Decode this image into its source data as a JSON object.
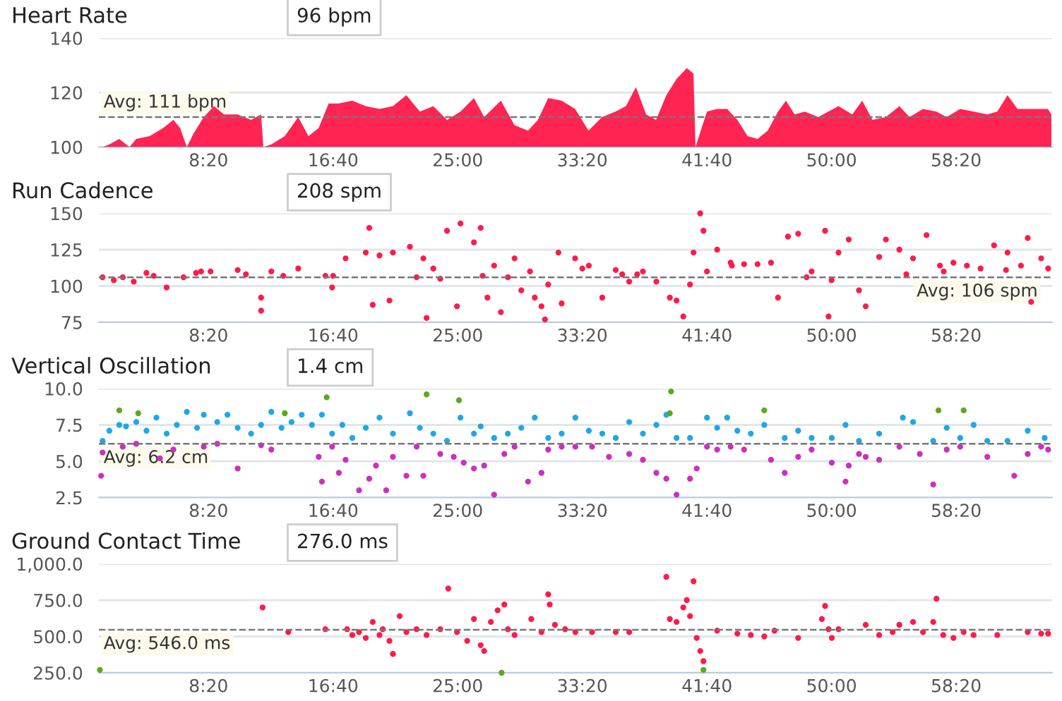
{
  "chart_data": [
    {
      "type": "area",
      "title": "Heart Rate",
      "xlim": [
        60,
        3885
      ],
      "ylim": [
        100,
        140
      ],
      "xticks": [
        {
          "value": 500,
          "label": "8:20"
        },
        {
          "value": 1000,
          "label": "16:40"
        },
        {
          "value": 1500,
          "label": "25:00"
        },
        {
          "value": 2000,
          "label": "33:20"
        },
        {
          "value": 2500,
          "label": "41:40"
        },
        {
          "value": 3000,
          "label": "50:00"
        },
        {
          "value": 3500,
          "label": "58:20"
        }
      ],
      "yticks": [
        100,
        120,
        140
      ],
      "grid": "y",
      "series": [
        {
          "color": "#ff2452",
          "x": [
            75,
            102,
            142,
            183,
            210,
            264,
            318,
            359,
            386,
            413,
            440,
            481,
            522,
            562,
            616,
            671,
            711,
            720,
            752,
            806,
            860,
            901,
            942,
            982,
            1023,
            1077,
            1131,
            1186,
            1240,
            1294,
            1348,
            1402,
            1457,
            1511,
            1565,
            1606,
            1673,
            1728,
            1782,
            1822,
            1863,
            1917,
            1971,
            2025,
            2079,
            2133,
            2175,
            2215,
            2256,
            2296,
            2337,
            2378,
            2419,
            2446,
            2454,
            2500,
            2540,
            2581,
            2622,
            2663,
            2703,
            2744,
            2785,
            2817,
            2852,
            2893,
            2947,
            2987,
            3028,
            3083,
            3123,
            3164,
            3218,
            3272,
            3313,
            3367,
            3421,
            3462,
            3516,
            3570,
            3625,
            3665,
            3706,
            3746,
            3787,
            3868,
            3882
          ],
          "values": [
            100,
            101,
            103,
            100,
            103,
            104,
            107,
            110,
            107,
            100,
            105,
            111,
            115,
            112,
            112,
            110,
            112,
            100,
            101,
            104,
            111,
            104,
            107,
            116,
            116,
            117,
            115,
            114,
            115,
            119,
            113,
            115,
            110,
            113,
            118,
            111,
            117,
            108,
            106,
            110,
            118,
            117,
            114,
            106,
            111,
            113,
            115,
            122,
            112,
            110,
            119,
            125,
            129,
            127,
            100,
            113,
            114,
            114,
            110,
            104,
            103,
            106,
            113,
            117,
            112,
            113,
            111,
            113,
            115,
            112,
            117,
            110,
            111,
            115,
            111,
            114,
            113,
            111,
            114,
            113,
            112,
            113,
            119,
            114,
            114,
            114,
            112
          ]
        }
      ],
      "ref_lines": [
        {
          "axis": "y",
          "value": 111,
          "label": "Avg: 111 bpm",
          "color": "#777777",
          "line_style": "dashed"
        }
      ],
      "annotations": [
        "96 bpm"
      ]
    },
    {
      "type": "scatter",
      "title": "Run Cadence",
      "xlim": [
        60,
        3885
      ],
      "ylim": [
        75,
        150
      ],
      "xticks": [
        {
          "value": 500,
          "label": "8:20"
        },
        {
          "value": 1000,
          "label": "16:40"
        },
        {
          "value": 1500,
          "label": "25:00"
        },
        {
          "value": 2000,
          "label": "33:20"
        },
        {
          "value": 2500,
          "label": "41:40"
        },
        {
          "value": 3000,
          "label": "50:00"
        },
        {
          "value": 3500,
          "label": "58:20"
        }
      ],
      "yticks": [
        75,
        100,
        125,
        150
      ],
      "grid": "y",
      "marker": "circle",
      "series": [
        {
          "color": "#ff1a4a",
          "x": [
            75,
            120,
            156,
            200,
            251,
            280,
            332,
            400,
            450,
            470,
            508,
            617,
            650,
            711,
            711,
            752,
            800,
            860,
            969,
            996,
            1000,
            1050,
            1131,
            1145,
            1159,
            1186,
            1226,
            1240,
            1308,
            1335,
            1362,
            1375,
            1402,
            1430,
            1457,
            1497,
            1511,
            1565,
            1592,
            1600,
            1619,
            1646,
            1673,
            1701,
            1728,
            1755,
            1790,
            1809,
            1836,
            1850,
            1863,
            1904,
            1917,
            1971,
            2000,
            2026,
            2080,
            2134,
            2160,
            2188,
            2220,
            2243,
            2297,
            2351,
            2378,
            2405,
            2432,
            2446,
            2473,
            2486,
            2500,
            2541,
            2595,
            2600,
            2649,
            2703,
            2757,
            2785,
            2825,
            2866,
            2900,
            2920,
            2974,
            2988,
            3000,
            3028,
            3069,
            3110,
            3137,
            3191,
            3218,
            3272,
            3300,
            3327,
            3381,
            3435,
            3450,
            3489,
            3543,
            3598,
            3652,
            3700,
            3706,
            3760,
            3787,
            3801,
            3841,
            3869
          ],
          "values": [
            106,
            104,
            106,
            103,
            109,
            107,
            99,
            106,
            109,
            110,
            110,
            111,
            108,
            92,
            83,
            110,
            107,
            112,
            107,
            99,
            107,
            119,
            123,
            140,
            87,
            121,
            90,
            123,
            127,
            106,
            119,
            78,
            112,
            105,
            138,
            86,
            143,
            130,
            140,
            107,
            92,
            114,
            82,
            106,
            119,
            97,
            110,
            92,
            86,
            77,
            101,
            123,
            88,
            119,
            112,
            114,
            92,
            111,
            108,
            103,
            108,
            110,
            103,
            92,
            90,
            79,
            101,
            123,
            150,
            138,
            110,
            125,
            116,
            114,
            115,
            115,
            116,
            92,
            134,
            136,
            106,
            110,
            138,
            79,
            104,
            123,
            132,
            97,
            86,
            120,
            132,
            125,
            108,
            119,
            135,
            114,
            110,
            116,
            114,
            112,
            128,
            111,
            123,
            114,
            133,
            89,
            119,
            112
          ]
        }
      ],
      "ref_lines": [
        {
          "axis": "y",
          "value": 106,
          "label": "Avg: 106 spm",
          "color": "#777777",
          "line_style": "dashed"
        }
      ],
      "annotations": [
        "208 spm"
      ]
    },
    {
      "type": "scatter",
      "title": "Vertical Oscillation",
      "xlim": [
        60,
        3885
      ],
      "ylim": [
        2.5,
        10
      ],
      "xticks": [
        {
          "value": 500,
          "label": "8:20"
        },
        {
          "value": 1000,
          "label": "16:40"
        },
        {
          "value": 1500,
          "label": "25:00"
        },
        {
          "value": 2000,
          "label": "33:20"
        },
        {
          "value": 2500,
          "label": "41:40"
        },
        {
          "value": 3000,
          "label": "50:00"
        },
        {
          "value": 3500,
          "label": "58:20"
        }
      ],
      "yticks": [
        {
          "value": 2.5,
          "label": "2.5"
        },
        {
          "value": 5,
          "label": "5.0"
        },
        {
          "value": 7.5,
          "label": "7.5"
        },
        {
          "value": 10,
          "label": "10.0"
        }
      ],
      "grid": "y",
      "marker": "circle",
      "series": [
        {
          "color": "#1ea7e8",
          "x": [
            75,
            102,
            142,
            169,
            210,
            251,
            291,
            332,
            373,
            413,
            454,
            481,
            535,
            576,
            617,
            671,
            711,
            752,
            793,
            833,
            874,
            915,
            955,
            996,
            1037,
            1077,
            1131,
            1186,
            1240,
            1308,
            1348,
            1402,
            1457,
            1511,
            1565,
            1592,
            1646,
            1701,
            1755,
            1809,
            1863,
            1917,
            1972,
            2026,
            2080,
            2134,
            2188,
            2243,
            2297,
            2337,
            2378,
            2432,
            2500,
            2541,
            2581,
            2622,
            2676,
            2730,
            2812,
            2866,
            2920,
            3001,
            3056,
            3110,
            3191,
            3286,
            3327,
            3408,
            3462,
            3516,
            3570,
            3625,
            3706,
            3787,
            3855
          ],
          "values": [
            6.4,
            7.1,
            7.5,
            7.4,
            7.7,
            7.1,
            8.0,
            6.9,
            7.5,
            8.4,
            7.3,
            8.2,
            7.7,
            8.2,
            7.3,
            6.9,
            7.5,
            8.4,
            7.3,
            7.7,
            8.2,
            7.5,
            8.2,
            6.9,
            7.5,
            6.6,
            7.3,
            8.0,
            6.9,
            8.3,
            7.3,
            6.9,
            6.4,
            8.0,
            6.9,
            7.4,
            6.6,
            6.9,
            7.3,
            8.0,
            6.6,
            6.9,
            8.0,
            7.1,
            6.9,
            6.6,
            7.7,
            6.9,
            7.5,
            8.2,
            6.6,
            6.6,
            8.0,
            7.3,
            8.0,
            7.1,
            6.9,
            7.5,
            6.6,
            7.1,
            6.6,
            6.6,
            7.5,
            6.4,
            6.9,
            8.0,
            7.7,
            6.4,
            7.3,
            6.6,
            7.5,
            6.4,
            6.4,
            7.1,
            6.6
          ]
        },
        {
          "color": "#cc2ec2",
          "x": [
            69,
            75,
            156,
            210,
            305,
            359,
            481,
            535,
            617,
            711,
            752,
            942,
            955,
            996,
            1023,
            1050,
            1104,
            1145,
            1172,
            1213,
            1240,
            1294,
            1335,
            1362,
            1430,
            1484,
            1524,
            1565,
            1606,
            1646,
            1687,
            1728,
            1782,
            1836,
            1863,
            1917,
            1972,
            2039,
            2107,
            2188,
            2243,
            2297,
            2337,
            2378,
            2432,
            2459,
            2500,
            2541,
            2595,
            2649,
            2757,
            2812,
            2866,
            2920,
            3001,
            3056,
            3069,
            3110,
            3137,
            3191,
            3272,
            3354,
            3408,
            3462,
            3516,
            3625,
            3733,
            3787,
            3841,
            3869
          ],
          "values": [
            4.0,
            5.6,
            6.0,
            6.2,
            5.2,
            5.8,
            6.0,
            6.2,
            4.5,
            6.1,
            5.8,
            5.3,
            3.6,
            6.0,
            4.2,
            5.1,
            3.0,
            3.8,
            4.7,
            3.0,
            5.3,
            4.0,
            6.0,
            4.0,
            5.5,
            5.3,
            4.9,
            4.5,
            4.7,
            2.7,
            5.5,
            6.0,
            3.6,
            4.2,
            5.8,
            6.0,
            6.0,
            6.0,
            5.3,
            5.5,
            5.1,
            4.2,
            3.8,
            2.7,
            3.8,
            4.5,
            6.0,
            5.8,
            6.0,
            5.8,
            5.1,
            4.2,
            5.3,
            5.8,
            4.9,
            3.6,
            4.7,
            5.5,
            5.3,
            5.1,
            6.0,
            5.5,
            3.4,
            5.8,
            6.0,
            5.3,
            4.0,
            5.5,
            6.0,
            5.8
          ]
        },
        {
          "color": "#5aaa1e",
          "x": [
            142,
            218,
            806,
            974,
            1375,
            1505,
            2351,
            2356,
            2730,
            3429,
            3530
          ],
          "values": [
            8.5,
            8.3,
            8.3,
            9.4,
            9.6,
            9.2,
            8.3,
            9.8,
            8.5,
            8.5,
            8.5
          ]
        }
      ],
      "ref_lines": [
        {
          "axis": "y",
          "value": 6.2,
          "label": "Avg: 6.2 cm",
          "color": "#777777",
          "line_style": "dashed"
        }
      ],
      "annotations": [
        "1.4 cm"
      ]
    },
    {
      "type": "scatter",
      "title": "Ground Contact Time",
      "xlim": [
        60,
        3885
      ],
      "ylim": [
        250,
        1000
      ],
      "xticks": [
        {
          "value": 500,
          "label": "8:20"
        },
        {
          "value": 1000,
          "label": "16:40"
        },
        {
          "value": 1500,
          "label": "25:00"
        },
        {
          "value": 2000,
          "label": "33:20"
        },
        {
          "value": 2500,
          "label": "41:40"
        },
        {
          "value": 3000,
          "label": "50:00"
        },
        {
          "value": 3500,
          "label": "58:20"
        }
      ],
      "yticks": [
        {
          "value": 250,
          "label": "250.0"
        },
        {
          "value": 500,
          "label": "500.0"
        },
        {
          "value": 750,
          "label": "750.0"
        },
        {
          "value": 1000,
          "label": "1,000.0"
        }
      ],
      "grid": "y",
      "marker": "circle",
      "series": [
        {
          "color": "#ff1a4a",
          "x": [
            717,
            820,
            969,
            1056,
            1077,
            1104,
            1131,
            1159,
            1186,
            1199,
            1226,
            1240,
            1267,
            1294,
            1335,
            1375,
            1430,
            1462,
            1497,
            1538,
            1565,
            1592,
            1606,
            1633,
            1660,
            1687,
            1701,
            1728,
            1795,
            1836,
            1863,
            1869,
            1890,
            1931,
            1972,
            2039,
            2134,
            2188,
            2337,
            2351,
            2378,
            2405,
            2419,
            2432,
            2446,
            2459,
            2473,
            2486,
            2541,
            2622,
            2676,
            2730,
            2771,
            2866,
            2961,
            2974,
            2988,
            3001,
            3028,
            3137,
            3191,
            3245,
            3272,
            3327,
            3367,
            3408,
            3421,
            3448,
            3489,
            3530,
            3570,
            3665,
            3787,
            3841,
            3869
          ],
          "values": [
            700,
            530,
            550,
            550,
            510,
            530,
            490,
            600,
            510,
            550,
            470,
            380,
            640,
            530,
            550,
            510,
            550,
            830,
            530,
            470,
            620,
            440,
            400,
            600,
            680,
            720,
            550,
            510,
            620,
            530,
            790,
            720,
            580,
            550,
            530,
            530,
            530,
            530,
            910,
            620,
            600,
            700,
            750,
            640,
            880,
            490,
            400,
            330,
            540,
            520,
            510,
            500,
            540,
            490,
            620,
            710,
            550,
            490,
            550,
            580,
            510,
            530,
            580,
            600,
            530,
            600,
            760,
            510,
            490,
            530,
            510,
            510,
            530,
            520,
            520
          ]
        },
        {
          "color": "#5aaa1e",
          "x": [
            64,
            1676,
            2486
          ],
          "values": [
            270,
            250,
            270
          ]
        }
      ],
      "ref_lines": [
        {
          "axis": "y",
          "value": 546,
          "label": "Avg: 546.0 ms",
          "color": "#777777",
          "line_style": "dashed"
        }
      ],
      "annotations": [
        "276.0 ms"
      ]
    }
  ]
}
